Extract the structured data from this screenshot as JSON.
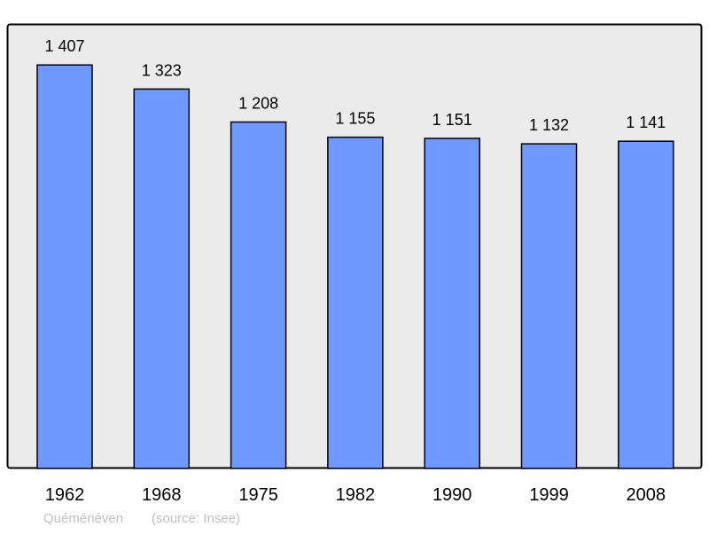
{
  "chart_data": {
    "type": "bar",
    "categories": [
      "1962",
      "1968",
      "1975",
      "1982",
      "1990",
      "1999",
      "2008"
    ],
    "values": [
      1407,
      1323,
      1208,
      1155,
      1151,
      1132,
      1141
    ],
    "value_labels": [
      "1 407",
      "1 323",
      "1 208",
      "1 155",
      "1 151",
      "1 132",
      "1 141"
    ],
    "title": "",
    "xlabel": "",
    "ylabel": "",
    "ylim": [
      0,
      1550
    ],
    "grid": false,
    "bar_color": "#7099ff",
    "plot_background": "#ebebeb"
  },
  "footer": {
    "place": "Quéménéven",
    "source": "(source: Insee)"
  }
}
